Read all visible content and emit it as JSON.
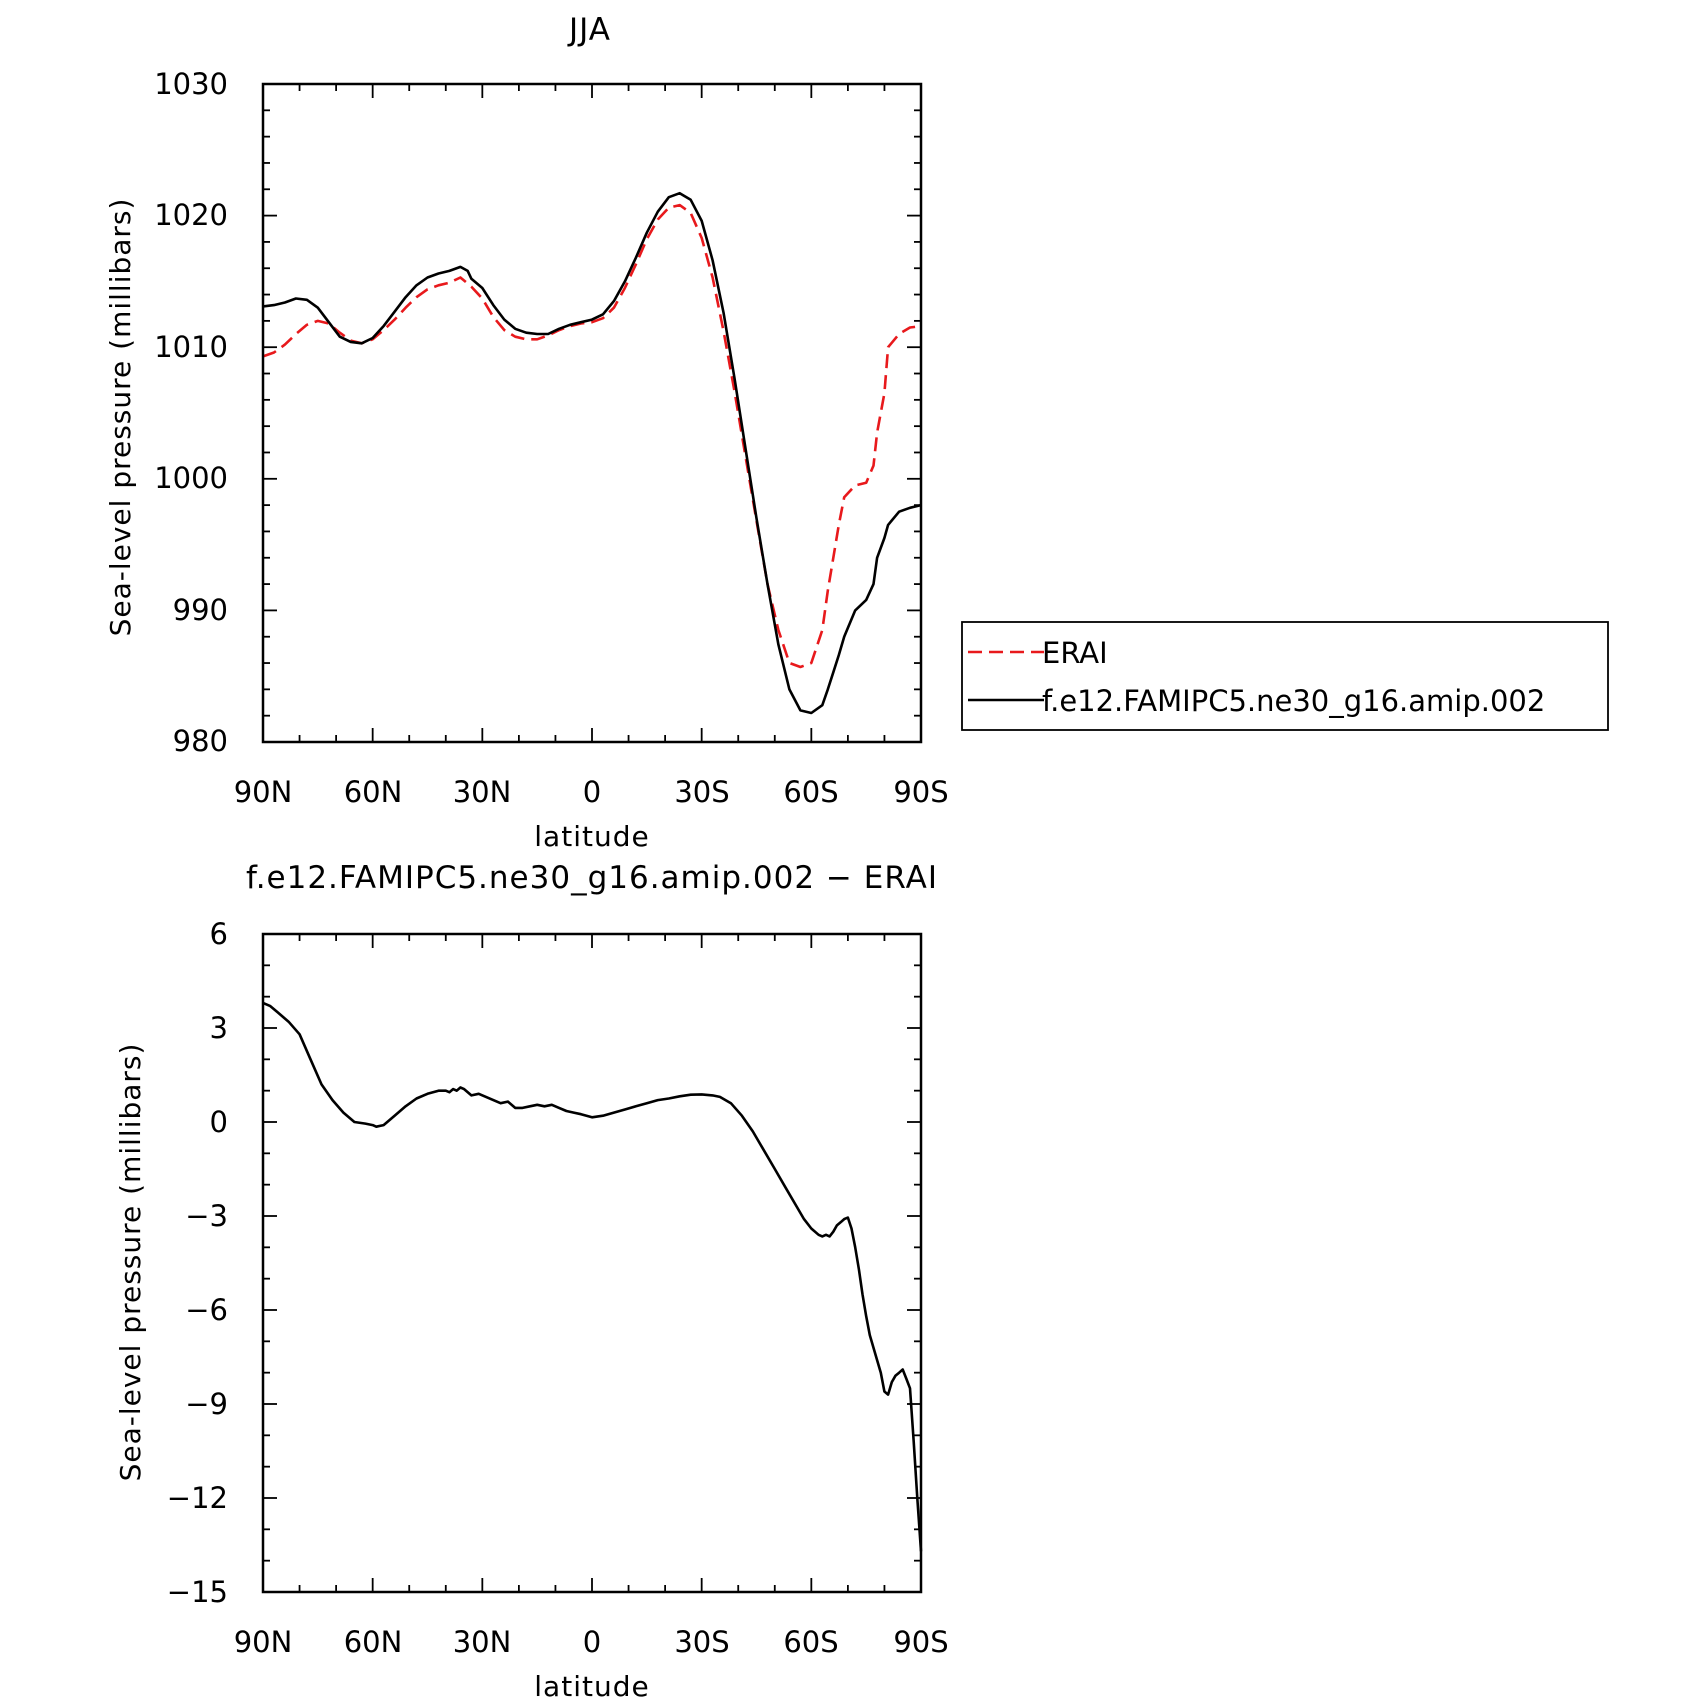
{
  "chart_data": [
    {
      "type": "line",
      "title": "JJA",
      "xlabel": "latitude",
      "ylabel": "Sea-level pressure (millibars)",
      "xlim": [
        90,
        -90
      ],
      "ylim": [
        980,
        1030
      ],
      "xticks": [
        90,
        60,
        30,
        0,
        -30,
        -60,
        -90
      ],
      "xtick_labels": [
        "90N",
        "60N",
        "30N",
        "0",
        "30S",
        "60S",
        "90S"
      ],
      "yticks": [
        980,
        990,
        1000,
        1010,
        1020,
        1030
      ],
      "ytick_labels": [
        "980",
        "990",
        "1000",
        "1010",
        "1020",
        "1030"
      ],
      "legend": {
        "placement": "right",
        "entries": [
          "ERAI",
          "f.e12.FAMIPC5.ne30_g16.amip.002"
        ]
      },
      "series": [
        {
          "name": "ERAI",
          "color": "#e8191c",
          "dash": "dashed",
          "x": [
            90,
            87,
            84,
            81,
            78,
            75,
            72,
            69,
            66,
            63,
            60,
            57,
            54,
            51,
            48,
            45,
            42,
            39,
            36,
            33,
            30,
            27,
            24,
            21,
            18,
            15,
            12,
            9,
            6,
            3,
            0,
            -3,
            -6,
            -9,
            -12,
            -15,
            -18,
            -21,
            -24,
            -27,
            -30,
            -33,
            -36,
            -39,
            -42,
            -45,
            -48,
            -51,
            -54,
            -57,
            -60,
            -63,
            -64.5,
            -66,
            -67.5,
            -69,
            -72,
            -75,
            -77,
            -78,
            -80,
            -81,
            -84,
            -87,
            -90
          ],
          "y": [
            1009.3,
            1009.6,
            1010.2,
            1011.0,
            1011.7,
            1012.0,
            1011.8,
            1011.1,
            1010.5,
            1010.3,
            1010.6,
            1011.3,
            1012.1,
            1013.0,
            1013.8,
            1014.4,
            1014.7,
            1014.9,
            1015.3,
            1014.6,
            1013.7,
            1012.3,
            1011.3,
            1010.8,
            1010.6,
            1010.6,
            1010.9,
            1011.3,
            1011.6,
            1011.8,
            1011.9,
            1012.2,
            1013.0,
            1014.5,
            1016.3,
            1018.2,
            1019.7,
            1020.6,
            1020.8,
            1020.2,
            1018.3,
            1015.3,
            1011.2,
            1006.6,
            1001.7,
            996.8,
            992.0,
            988.5,
            986.0,
            985.7,
            986.0,
            988.5,
            991.5,
            994.0,
            996.5,
            998.6,
            999.5,
            999.7,
            1001.0,
            1003.5,
            1006.5,
            1010.0,
            1011.0,
            1011.5,
            1011.6
          ]
        },
        {
          "name": "f.e12.FAMIPC5.ne30_g16.amip.002",
          "color": "#000000",
          "dash": "solid",
          "x": [
            90,
            87,
            84,
            81,
            78,
            75,
            72,
            69,
            66,
            63,
            60,
            57,
            54,
            51,
            48,
            45,
            42,
            39,
            36,
            34,
            33,
            30,
            27,
            24,
            21,
            18,
            15,
            12,
            9,
            6,
            3,
            0,
            -3,
            -6,
            -9,
            -12,
            -15,
            -18,
            -21,
            -24,
            -27,
            -30,
            -33,
            -36,
            -39,
            -42,
            -45,
            -48,
            -51,
            -54,
            -57,
            -60,
            -63,
            -64.5,
            -66,
            -67.5,
            -69,
            -72,
            -75,
            -77,
            -78,
            -80,
            -81,
            -84,
            -87,
            -90
          ],
          "y": [
            1013.1,
            1013.2,
            1013.4,
            1013.7,
            1013.6,
            1013.0,
            1011.9,
            1010.8,
            1010.4,
            1010.3,
            1010.7,
            1011.6,
            1012.7,
            1013.8,
            1014.7,
            1015.3,
            1015.6,
            1015.8,
            1016.1,
            1015.8,
            1015.2,
            1014.5,
            1013.2,
            1012.1,
            1011.4,
            1011.1,
            1011.0,
            1011.0,
            1011.4,
            1011.7,
            1011.9,
            1012.1,
            1012.5,
            1013.5,
            1015.0,
            1016.8,
            1018.7,
            1020.3,
            1021.4,
            1021.7,
            1021.2,
            1019.6,
            1016.6,
            1012.6,
            1007.6,
            1002.3,
            997.0,
            992.0,
            987.4,
            984.0,
            982.4,
            982.2,
            982.8,
            984.0,
            985.3,
            986.6,
            988.0,
            990.0,
            990.8,
            992.0,
            994.0,
            995.5,
            996.5,
            997.5,
            997.8,
            998.0
          ]
        }
      ]
    },
    {
      "type": "line",
      "title": "f.e12.FAMIPC5.ne30_g16.amip.002 − ERAI",
      "xlabel": "latitude",
      "ylabel": "Sea-level pressure (millibars)",
      "xlim": [
        90,
        -90
      ],
      "ylim": [
        -15,
        6
      ],
      "xticks": [
        90,
        60,
        30,
        0,
        -30,
        -60,
        -90
      ],
      "xtick_labels": [
        "90N",
        "60N",
        "30N",
        "0",
        "30S",
        "60S",
        "90S"
      ],
      "yticks": [
        -15,
        -12,
        -9,
        -6,
        -3,
        0,
        3,
        6
      ],
      "ytick_labels": [
        "−15",
        "−12",
        "−9",
        "−6",
        "−3",
        "0",
        "3",
        "6"
      ],
      "series": [
        {
          "color": "#000000",
          "dash": "solid",
          "x": [
            90,
            88,
            86,
            83,
            80,
            77,
            74,
            71,
            68,
            65,
            62,
            60,
            59,
            57,
            54,
            51,
            48,
            45,
            42,
            40,
            39,
            38,
            37,
            36,
            35,
            33,
            31,
            29,
            27,
            25,
            23,
            21,
            19,
            17,
            15,
            13,
            11,
            9,
            7,
            5,
            3,
            0,
            -3,
            -6,
            -9,
            -12,
            -15,
            -18,
            -21,
            -24,
            -27,
            -30,
            -33,
            -35,
            -38,
            -41,
            -44,
            -47,
            -50,
            -53,
            -56,
            -58,
            -60,
            -62,
            -63,
            -64,
            -65,
            -66,
            -67,
            -68,
            -69,
            -70,
            -71,
            -72,
            -73,
            -74,
            -75,
            -76,
            -78,
            -79,
            -80,
            -81,
            -82,
            -83,
            -84,
            -85,
            -86,
            -87,
            -88,
            -89,
            -90
          ],
          "y": [
            3.8,
            3.7,
            3.5,
            3.2,
            2.8,
            2.0,
            1.2,
            0.7,
            0.3,
            0.0,
            -0.05,
            -0.1,
            -0.15,
            -0.1,
            0.2,
            0.5,
            0.75,
            0.9,
            1.0,
            1.0,
            0.95,
            1.05,
            1.0,
            1.1,
            1.05,
            0.85,
            0.9,
            0.8,
            0.7,
            0.6,
            0.65,
            0.45,
            0.45,
            0.5,
            0.55,
            0.5,
            0.55,
            0.45,
            0.35,
            0.3,
            0.25,
            0.15,
            0.2,
            0.3,
            0.4,
            0.5,
            0.6,
            0.7,
            0.75,
            0.82,
            0.87,
            0.88,
            0.85,
            0.8,
            0.6,
            0.2,
            -0.3,
            -0.9,
            -1.5,
            -2.1,
            -2.7,
            -3.1,
            -3.4,
            -3.6,
            -3.65,
            -3.6,
            -3.65,
            -3.5,
            -3.3,
            -3.2,
            -3.1,
            -3.05,
            -3.4,
            -4.0,
            -4.7,
            -5.5,
            -6.2,
            -6.8,
            -7.6,
            -8.0,
            -8.6,
            -8.7,
            -8.3,
            -8.1,
            -8.0,
            -7.9,
            -8.2,
            -8.5,
            -10.2,
            -12.0,
            -13.7
          ]
        }
      ]
    }
  ]
}
